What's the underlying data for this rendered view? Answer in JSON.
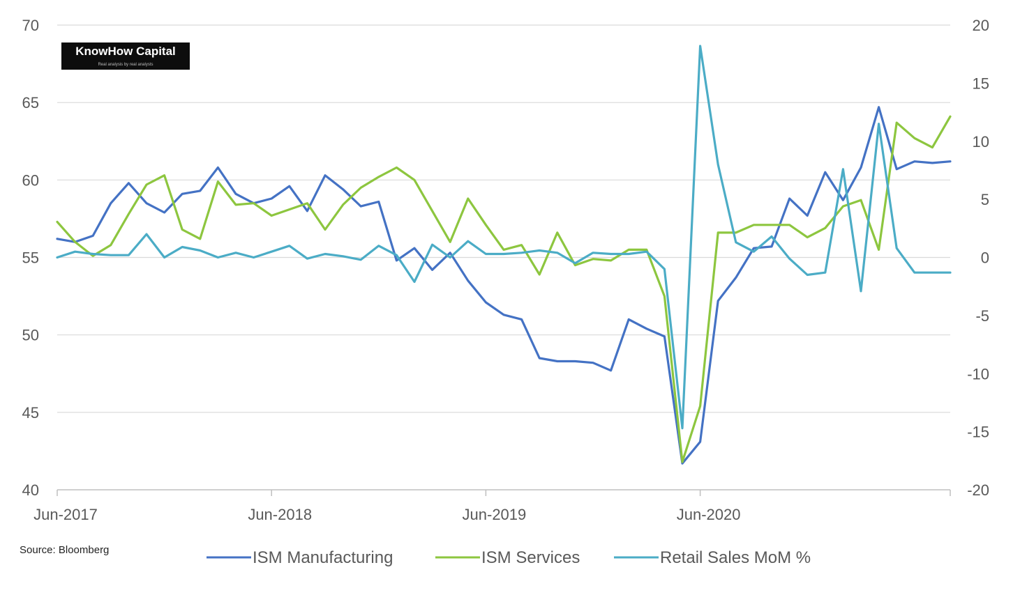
{
  "logo": {
    "title": "KnowHow Capital",
    "tagline": "Real analysis by real analysts"
  },
  "source": "Source: Bloomberg",
  "chart_data": {
    "type": "line",
    "title": "",
    "xlabel": "",
    "ylabel": "",
    "x_tick_labels": [
      "Jun-2017",
      "Jun-2018",
      "Jun-2019",
      "Jun-2020"
    ],
    "x": [
      "Jun-2017",
      "Jul-2017",
      "Aug-2017",
      "Sep-2017",
      "Oct-2017",
      "Nov-2017",
      "Dec-2017",
      "Jan-2018",
      "Feb-2018",
      "Mar-2018",
      "Apr-2018",
      "May-2018",
      "Jun-2018",
      "Jul-2018",
      "Aug-2018",
      "Sep-2018",
      "Oct-2018",
      "Nov-2018",
      "Dec-2018",
      "Jan-2019",
      "Feb-2019",
      "Mar-2019",
      "Apr-2019",
      "May-2019",
      "Jun-2019",
      "Jul-2019",
      "Aug-2019",
      "Sep-2019",
      "Oct-2019",
      "Nov-2019",
      "Dec-2019",
      "Jan-2020",
      "Feb-2020",
      "Mar-2020",
      "Apr-2020",
      "May-2020",
      "Jun-2020",
      "Jul-2020",
      "Aug-2020",
      "Sep-2020",
      "Oct-2020",
      "Nov-2020",
      "Dec-2020",
      "Jan-2021",
      "Feb-2021",
      "Mar-2021",
      "Apr-2021",
      "May-2021",
      "Jun-2021",
      "Jul-2021",
      "Aug-2021"
    ],
    "y_left": {
      "min": 40,
      "max": 70,
      "ticks": [
        40,
        45,
        50,
        55,
        60,
        65,
        70
      ]
    },
    "y_right": {
      "min": -20,
      "max": 20,
      "ticks": [
        -20,
        -15,
        -10,
        -5,
        0,
        5,
        10,
        15,
        20
      ]
    },
    "grid": true,
    "legend_position": "bottom",
    "series": [
      {
        "name": "ISM Manufacturing",
        "axis": "left",
        "color": "#4472C4",
        "values": [
          56.2,
          56.0,
          56.4,
          58.5,
          59.8,
          58.5,
          57.9,
          59.1,
          59.3,
          60.8,
          59.1,
          58.5,
          58.8,
          59.6,
          58.0,
          60.3,
          59.4,
          58.3,
          58.6,
          54.8,
          55.6,
          54.2,
          55.3,
          53.5,
          52.1,
          51.3,
          51.0,
          48.5,
          48.3,
          48.3,
          48.2,
          47.7,
          51.0,
          50.4,
          49.9,
          41.7,
          43.1,
          52.2,
          53.7,
          55.6,
          55.7,
          58.8,
          57.7,
          60.5,
          58.7,
          60.8,
          64.7,
          60.7,
          61.2,
          61.1,
          61.2
        ]
      },
      {
        "name": "ISM Services",
        "axis": "left",
        "color": "#8DC63F",
        "values": [
          57.3,
          56.0,
          55.1,
          55.8,
          57.8,
          59.7,
          60.3,
          56.8,
          56.2,
          59.9,
          58.4,
          58.5,
          57.7,
          58.1,
          58.5,
          56.8,
          58.4,
          59.5,
          60.2,
          60.8,
          60.0,
          58.0,
          56.0,
          58.8,
          57.1,
          55.5,
          55.8,
          53.9,
          56.6,
          54.5,
          54.9,
          54.8,
          55.5,
          55.5,
          52.5,
          41.8,
          45.4,
          56.6,
          56.6,
          57.1,
          57.1,
          57.1,
          56.3,
          56.9,
          58.3,
          58.7,
          55.5,
          63.7,
          62.7,
          62.1,
          64.1
        ]
      },
      {
        "name": "Retail Sales MoM %",
        "axis": "right",
        "color": "#4BACC6",
        "values": [
          0.0,
          0.5,
          0.3,
          0.2,
          0.2,
          2.0,
          0.0,
          0.9,
          0.6,
          0.0,
          0.4,
          0.0,
          0.5,
          1.0,
          -0.1,
          0.3,
          0.1,
          -0.2,
          1.0,
          0.2,
          -2.1,
          1.1,
          0.0,
          1.4,
          0.3,
          0.3,
          0.4,
          0.6,
          0.4,
          -0.5,
          0.4,
          0.3,
          0.3,
          0.5,
          -1.0,
          -14.7,
          18.2,
          8.0,
          1.3,
          0.5,
          1.8,
          -0.1,
          -1.5,
          -1.3,
          7.6,
          -2.9,
          11.5,
          0.8,
          -1.3,
          -1.3,
          -1.3
        ]
      }
    ]
  }
}
